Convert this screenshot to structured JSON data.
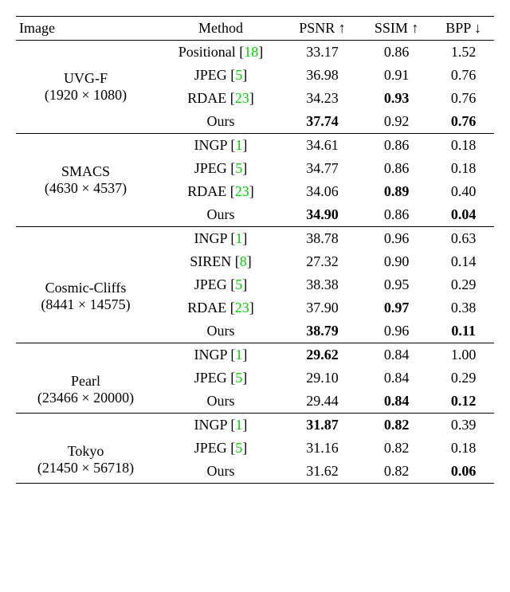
{
  "colors": {
    "background": "#ffffff",
    "text": "#000000",
    "citation": "#00cc00",
    "rule": "#000000"
  },
  "typography": {
    "font_family": "Times New Roman",
    "font_size_pt": 14,
    "bold_weight": 700
  },
  "columns": {
    "image": "Image",
    "method": "Method",
    "psnr": "PSNR ↑",
    "ssim": "SSIM ↑",
    "bpp": "BPP ↓"
  },
  "groups": [
    {
      "label": {
        "name": "UVG-F",
        "res": "(1920 × 1080)"
      },
      "rows": [
        {
          "method": "Positional",
          "cite": "18",
          "psnr": "33.17",
          "ssim": "0.86",
          "bpp": "1.52"
        },
        {
          "method": "JPEG",
          "cite": "5",
          "psnr": "36.98",
          "ssim": "0.91",
          "bpp": "0.76"
        },
        {
          "method": "RDAE",
          "cite": "23",
          "psnr": "34.23",
          "ssim": "0.93",
          "bpp": "0.76",
          "bold": [
            "ssim"
          ]
        },
        {
          "method": "Ours",
          "psnr": "37.74",
          "ssim": "0.92",
          "bpp": "0.76",
          "bold": [
            "psnr",
            "bpp"
          ]
        }
      ]
    },
    {
      "label": {
        "name": "SMACS",
        "res": "(4630 × 4537)"
      },
      "rows": [
        {
          "method": "INGP",
          "cite": "1",
          "psnr": "34.61",
          "ssim": "0.86",
          "bpp": "0.18"
        },
        {
          "method": "JPEG",
          "cite": "5",
          "psnr": "34.77",
          "ssim": "0.86",
          "bpp": "0.18"
        },
        {
          "method": "RDAE",
          "cite": "23",
          "psnr": "34.06",
          "ssim": "0.89",
          "bpp": "0.40",
          "bold": [
            "ssim"
          ]
        },
        {
          "method": "Ours",
          "psnr": "34.90",
          "ssim": "0.86",
          "bpp": "0.04",
          "bold": [
            "psnr",
            "bpp"
          ]
        }
      ]
    },
    {
      "label": {
        "name": "Cosmic-Cliffs",
        "res": "(8441 × 14575)"
      },
      "rows": [
        {
          "method": "INGP",
          "cite": "1",
          "psnr": "38.78",
          "ssim": "0.96",
          "bpp": "0.63"
        },
        {
          "method": "SIREN",
          "cite": "8",
          "psnr": "27.32",
          "ssim": "0.90",
          "bpp": "0.14"
        },
        {
          "method": "JPEG",
          "cite": "5",
          "psnr": "38.38",
          "ssim": "0.95",
          "bpp": "0.29"
        },
        {
          "method": "RDAE",
          "cite": "23",
          "psnr": "37.90",
          "ssim": "0.97",
          "bpp": "0.38",
          "bold": [
            "ssim"
          ]
        },
        {
          "method": "Ours",
          "psnr": "38.79",
          "ssim": "0.96",
          "bpp": "0.11",
          "bold": [
            "psnr",
            "bpp"
          ]
        }
      ]
    },
    {
      "label": {
        "name": "Pearl",
        "res": "(23466 × 20000)"
      },
      "rows": [
        {
          "method": "INGP",
          "cite": "1",
          "psnr": "29.62",
          "ssim": "0.84",
          "bpp": "1.00",
          "bold": [
            "psnr"
          ]
        },
        {
          "method": "JPEG",
          "cite": "5",
          "psnr": "29.10",
          "ssim": "0.84",
          "bpp": "0.29"
        },
        {
          "method": "Ours",
          "psnr": "29.44",
          "ssim": "0.84",
          "bpp": "0.12",
          "bold": [
            "ssim",
            "bpp"
          ]
        }
      ]
    },
    {
      "label": {
        "name": "Tokyo",
        "res": "(21450 × 56718)"
      },
      "rows": [
        {
          "method": "INGP",
          "cite": "1",
          "psnr": "31.87",
          "ssim": "0.82",
          "bpp": "0.39",
          "bold": [
            "psnr",
            "ssim"
          ]
        },
        {
          "method": "JPEG",
          "cite": "5",
          "psnr": "31.16",
          "ssim": "0.82",
          "bpp": "0.18"
        },
        {
          "method": "Ours",
          "psnr": "31.62",
          "ssim": "0.82",
          "bpp": "0.06",
          "bold": [
            "bpp"
          ]
        }
      ]
    }
  ]
}
